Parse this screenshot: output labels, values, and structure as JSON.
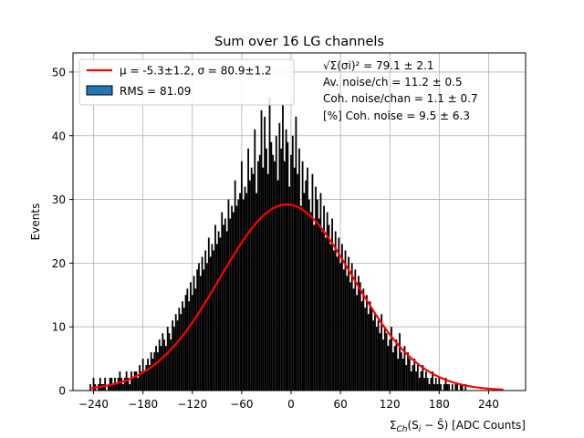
{
  "chart_data": {
    "type": "bar",
    "title": "Sum over 16 LG channels",
    "ylabel": "Events",
    "xlabel_parts": [
      "Σ",
      "Ch",
      "(S",
      "i",
      " − S̄) [ADC Counts]"
    ],
    "xlim": [
      -265,
      285
    ],
    "ylim": [
      0,
      53
    ],
    "xticks": [
      -240,
      -180,
      -120,
      -60,
      0,
      60,
      120,
      180,
      240
    ],
    "xtick_labels": [
      "−240",
      "−180",
      "−120",
      "−60",
      "0",
      "60",
      "120",
      "180",
      "240"
    ],
    "yticks": [
      0,
      10,
      20,
      30,
      40,
      50
    ],
    "ytick_labels": [
      "0",
      "10",
      "20",
      "30",
      "40",
      "50"
    ],
    "grid": true,
    "legend_position": "upper-left",
    "histogram": {
      "name": "RMS = 81.09",
      "color": "#000000",
      "legend_patch_color": "#1f77b4",
      "bin_start": -245,
      "bin_width": 2,
      "counts": [
        1,
        0,
        2,
        1,
        0,
        1,
        2,
        1,
        1,
        2,
        0,
        1,
        2,
        2,
        1,
        2,
        1,
        2,
        3,
        2,
        1,
        2,
        3,
        2,
        1,
        3,
        2,
        3,
        3,
        2,
        4,
        3,
        5,
        3,
        4,
        5,
        4,
        6,
        5,
        6,
        7,
        6,
        8,
        7,
        9,
        8,
        7,
        10,
        9,
        8,
        11,
        10,
        12,
        11,
        13,
        12,
        14,
        13,
        15,
        16,
        14,
        17,
        15,
        18,
        16,
        19,
        20,
        18,
        21,
        19,
        22,
        20,
        24,
        21,
        23,
        22,
        26,
        23,
        25,
        24,
        28,
        26,
        27,
        25,
        30,
        27,
        29,
        28,
        33,
        29,
        30,
        31,
        36,
        30,
        32,
        31,
        38,
        33,
        35,
        34,
        41,
        31,
        36,
        37,
        44,
        35,
        43,
        38,
        34,
        46,
        39,
        37,
        36,
        40,
        33,
        42,
        38,
        45,
        36,
        41,
        39,
        32,
        37,
        40,
        35,
        43,
        34,
        38,
        29,
        36,
        31,
        33,
        35,
        30,
        28,
        34,
        26,
        32,
        30,
        27,
        31,
        25,
        29,
        24,
        28,
        26,
        23,
        27,
        22,
        25,
        21,
        24,
        20,
        23,
        19,
        22,
        18,
        21,
        17,
        20,
        16,
        19,
        15,
        18,
        17,
        14,
        16,
        13,
        15,
        12,
        14,
        13,
        11,
        12,
        10,
        11,
        9,
        12,
        8,
        10,
        9,
        7,
        8,
        10,
        6,
        7,
        8,
        5,
        9,
        6,
        5,
        7,
        4,
        6,
        5,
        3,
        4,
        5,
        3,
        4,
        2,
        3,
        4,
        2,
        3,
        2,
        1,
        2,
        3,
        1,
        2,
        1,
        2,
        1,
        0,
        1,
        2,
        1,
        1,
        0,
        1,
        0,
        1,
        1,
        0,
        1,
        1,
        0,
        1
      ]
    },
    "fit": {
      "name": "μ = -5.3±1.2, σ = 80.9±1.2",
      "color": "#ff0000",
      "mu": -5.3,
      "sigma": 80.9,
      "amplitude": 29.2,
      "x_range": [
        -245,
        258
      ]
    }
  },
  "annotations": {
    "line1": "√Σ(σi)² = 79.1 ± 2.1",
    "line2": "Av. noise/ch  = 11.2 ± 0.5",
    "line3": "Coh. noise/chan  = 1.1 ± 0.7",
    "line4": "[%] Coh. noise  = 9.5 ± 6.3"
  }
}
